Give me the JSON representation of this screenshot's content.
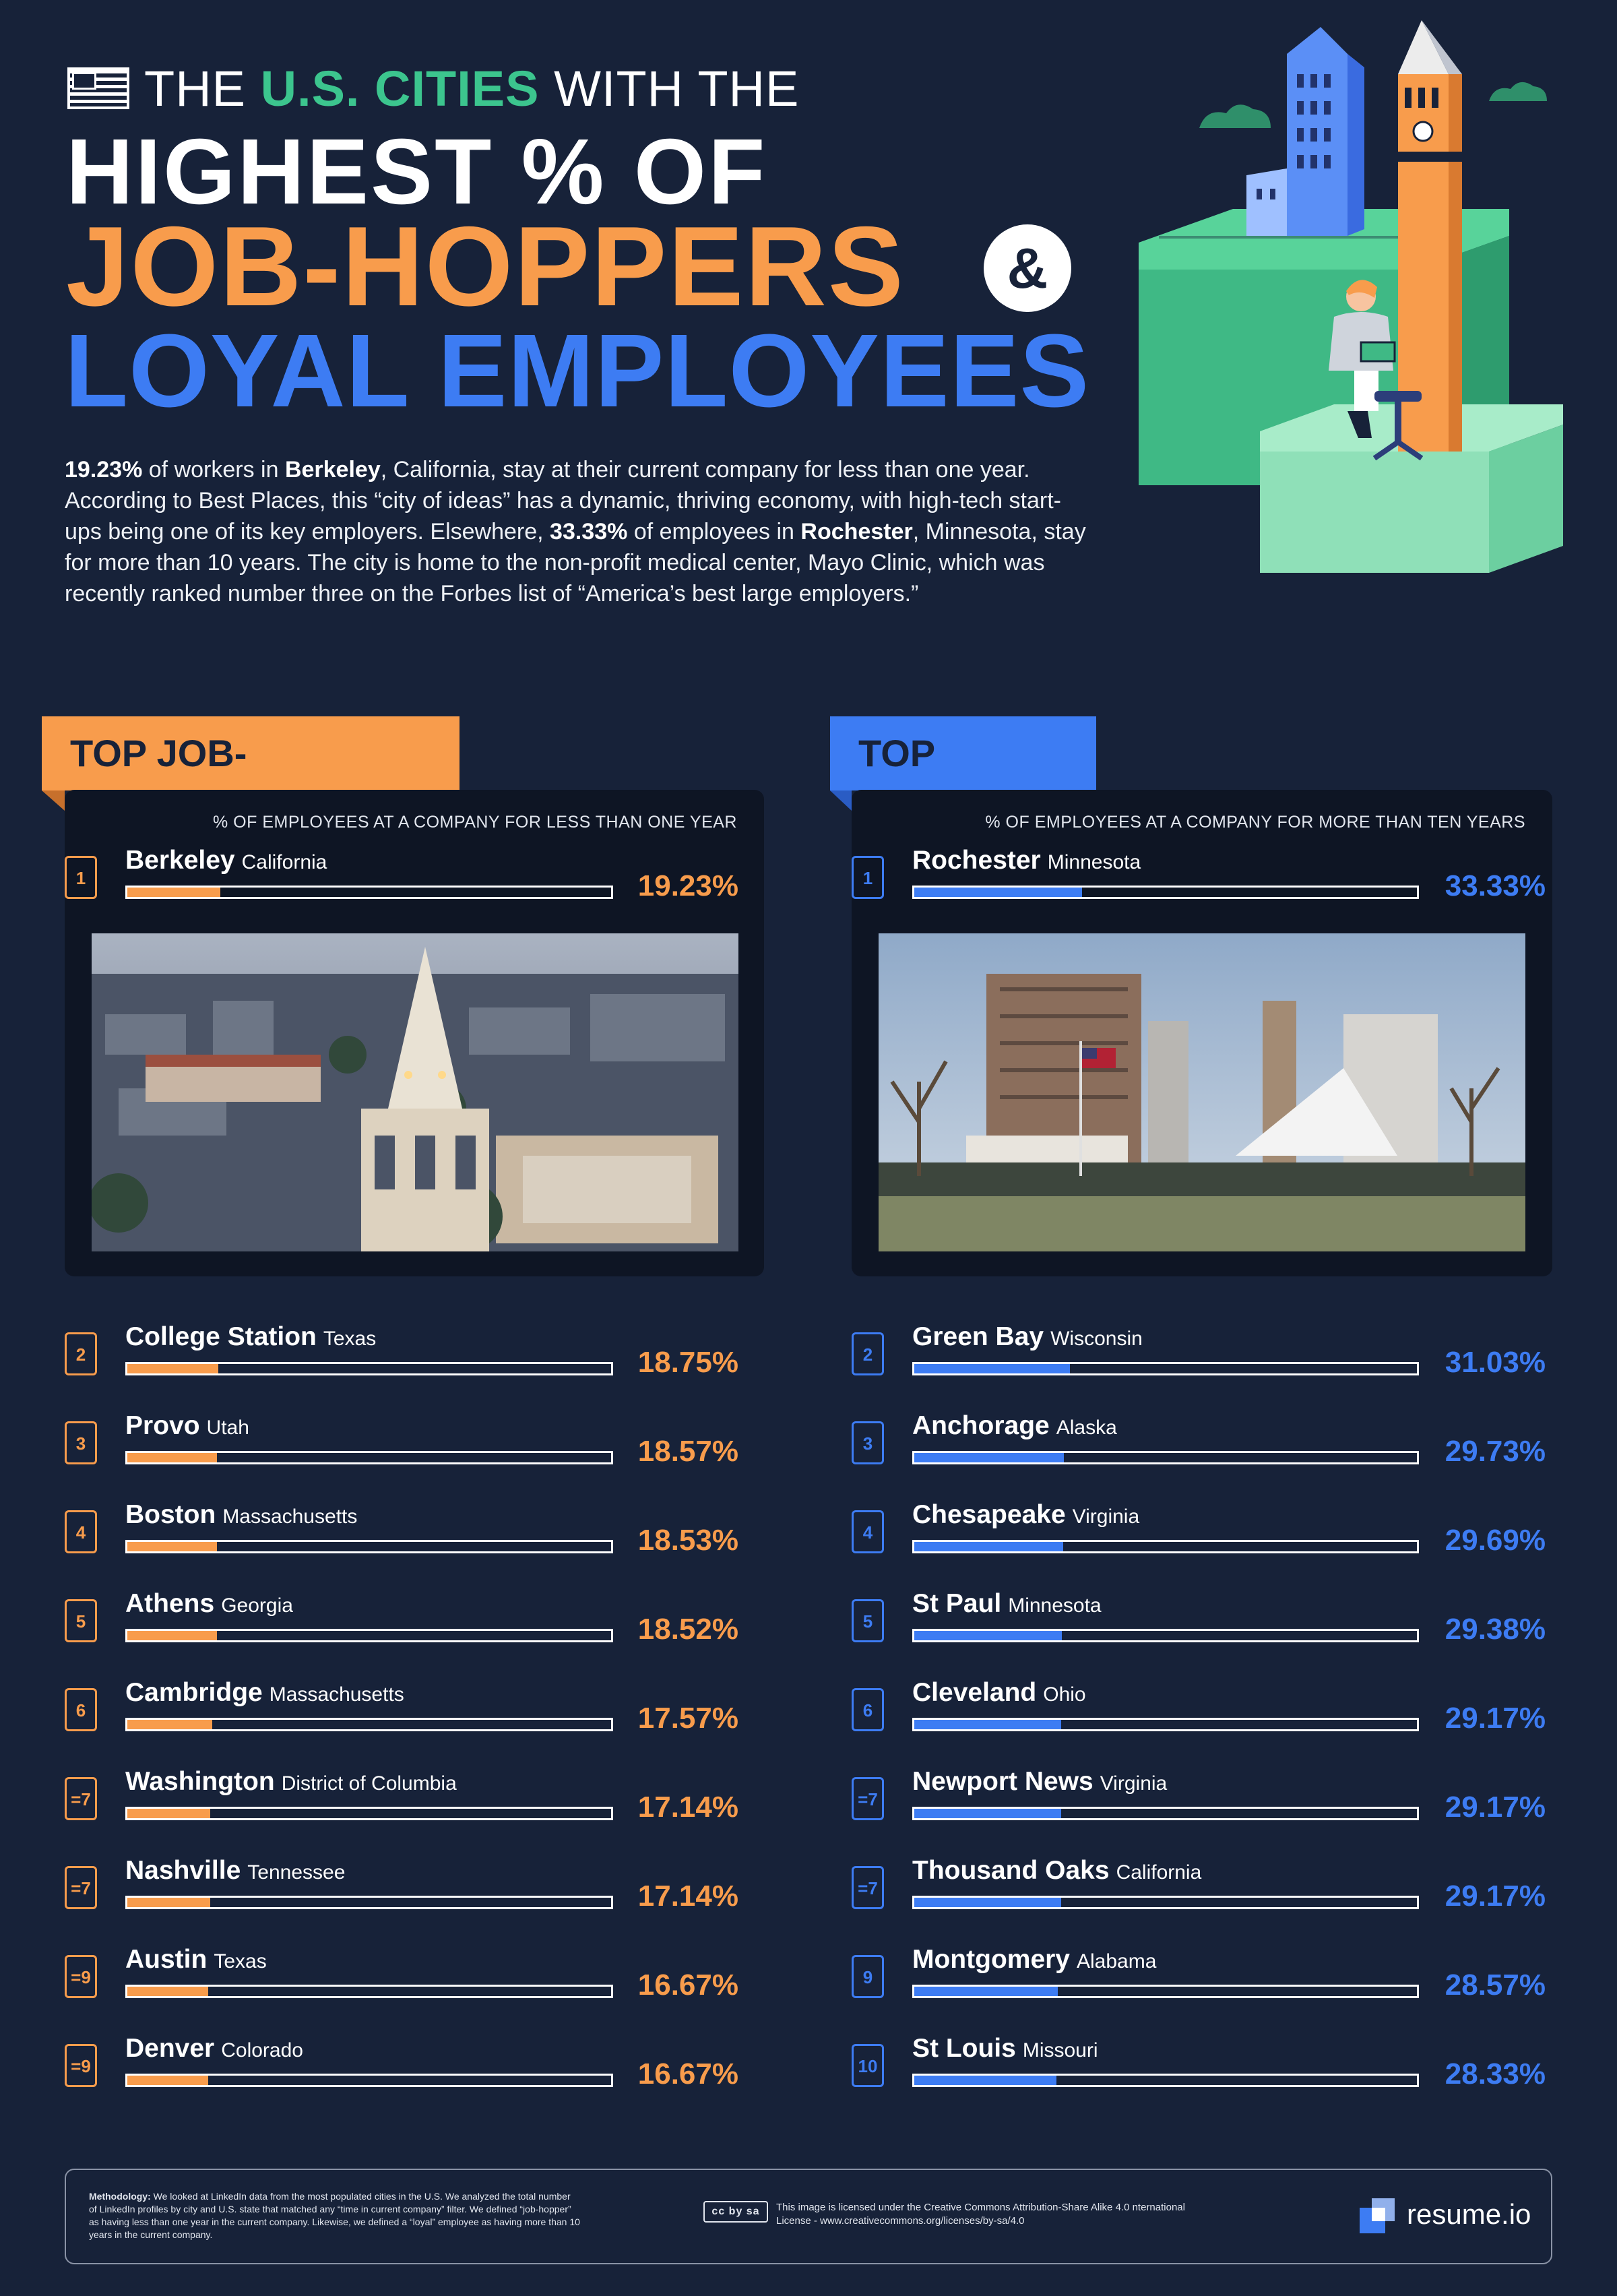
{
  "header": {
    "line1_pre": "THE ",
    "line1_highlight": "U.S. CITIES",
    "line1_post": " WITH THE",
    "line2": "HIGHEST % OF",
    "line3": "JOB-HOPPERS",
    "ampersand": "&",
    "line4": "LOYAL EMPLOYEES",
    "flag_icon": "us-flag-icon"
  },
  "intro": {
    "p1_value": "19.23%",
    "p1_a": " of workers in ",
    "p1_city": "Berkeley",
    "p1_b": ", California, stay at their current company for less than one year. According to Best Places, this “city of ideas” has a dynamic, thriving economy, with high-tech start-ups being one of its key employers. Elsewhere, ",
    "p2_value": "33.33%",
    "p2_a": " of employees in ",
    "p2_city": "Rochester",
    "p2_b": ", Minnesota, stay for more than 10 years. The city is home to the non-profit medical center, Mayo Clinic, which was recently ranked number three on the Forbes list of “America’s best large employers.”"
  },
  "sections": {
    "job_hoppers": {
      "heading": "TOP JOB-HOPPERS",
      "caption": "% OF EMPLOYEES AT A COMPANY FOR LESS THAN ONE YEAR",
      "color": "#f89c4c"
    },
    "loyal": {
      "heading": "TOP LOYAL",
      "caption": "% OF EMPLOYEES AT A COMPANY FOR MORE THAN TEN YEARS",
      "color": "#3d7cf3"
    }
  },
  "chart_data": [
    {
      "type": "bar",
      "categories": [
        "Berkeley",
        "College Station",
        "Provo",
        "Boston",
        "Athens",
        "Cambridge",
        "Washington",
        "Nashville",
        "Austin",
        "Denver"
      ],
      "states": [
        "California",
        "Texas",
        "Utah",
        "Massachusetts",
        "Georgia",
        "Massachusetts",
        "District of Columbia",
        "Tennessee",
        "Texas",
        "Colorado"
      ],
      "ranks": [
        "1",
        "2",
        "3",
        "4",
        "5",
        "6",
        "=7",
        "=7",
        "=9",
        "=9"
      ],
      "values": [
        19.23,
        18.75,
        18.57,
        18.53,
        18.52,
        17.57,
        17.14,
        17.14,
        16.67,
        16.67
      ],
      "labels": [
        "19.23%",
        "18.75%",
        "18.57%",
        "18.53%",
        "18.52%",
        "17.57%",
        "17.14%",
        "17.14%",
        "16.67%",
        "16.67%"
      ],
      "ylim": [
        0,
        100
      ],
      "color": "#f89c4c"
    },
    {
      "type": "bar",
      "categories": [
        "Rochester",
        "Green Bay",
        "Anchorage",
        "Chesapeake",
        "St Paul",
        "Cleveland",
        "Newport News",
        "Thousand Oaks",
        "Montgomery",
        "St Louis"
      ],
      "states": [
        "Minnesota",
        "Wisconsin",
        "Alaska",
        "Virginia",
        "Minnesota",
        "Ohio",
        "Virginia",
        "California",
        "Alabama",
        "Missouri"
      ],
      "ranks": [
        "1",
        "2",
        "3",
        "4",
        "5",
        "6",
        "=7",
        "=7",
        "9",
        "10"
      ],
      "values": [
        33.33,
        31.03,
        29.73,
        29.69,
        29.38,
        29.17,
        29.17,
        29.17,
        28.57,
        28.33
      ],
      "labels": [
        "33.33%",
        "31.03%",
        "29.73%",
        "29.69%",
        "29.38%",
        "29.17%",
        "29.17%",
        "29.17%",
        "28.57%",
        "28.33%"
      ],
      "ylim": [
        0,
        100
      ],
      "color": "#3d7cf3"
    }
  ],
  "footer": {
    "methodology_label": "Methodology:",
    "methodology_text": " We looked at LinkedIn data from the most populated cities in the U.S. We analyzed the total number of LinkedIn profiles by city and U.S. state that matched any “time in current company” filter. We defined “job-hopper” as having less than one year in the current company. Likewise, we defined a “loyal” employee as having more than 10 years in the current company.",
    "cc_badge": "cc by sa",
    "license_text": "This image is licensed under the Creative Commons Attribution-Share Alike 4.0 nternational License - www.creativecommons.org/licenses/by-sa/4.0",
    "brand": "resume.io"
  }
}
